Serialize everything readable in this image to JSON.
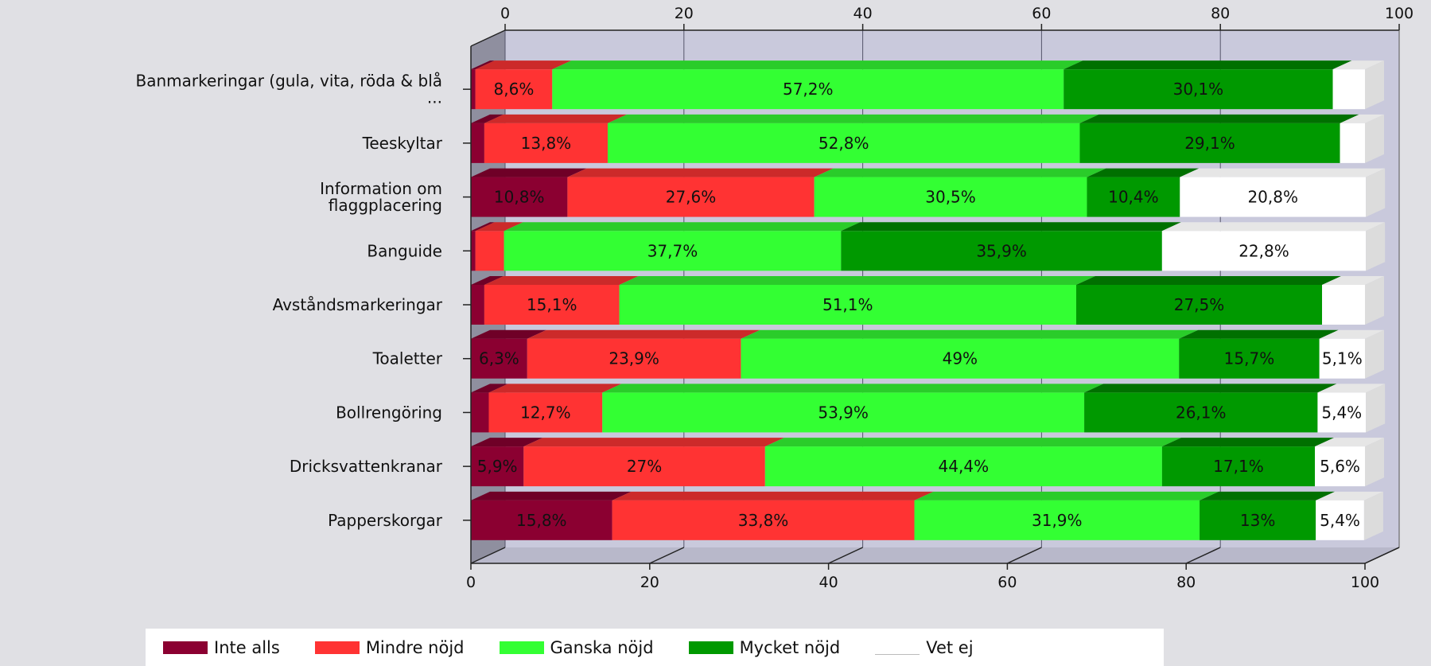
{
  "chart_data": {
    "type": "bar",
    "orientation": "horizontal",
    "stacked": true,
    "categories": [
      "Banmarkeringar (gula, vita, röda & blå ...",
      "Teeskyltar",
      "Information om flaggplacering",
      "Banguide",
      "Avståndsmarkeringar",
      "Toaletter",
      "Bollrengöring",
      "Dricksvattenkranar",
      "Papperskorgar"
    ],
    "category_lines": [
      [
        "Banmarkeringar (gula, vita, röda & blå",
        "..."
      ],
      [
        "Teeskyltar"
      ],
      [
        "Information om",
        "flaggplacering"
      ],
      [
        "Banguide"
      ],
      [
        "Avståndsmarkeringar"
      ],
      [
        "Toaletter"
      ],
      [
        "Bollrengöring"
      ],
      [
        "Dricksvattenkranar"
      ],
      [
        "Papperskorgar"
      ]
    ],
    "series": [
      {
        "name": "Inte alls",
        "color": "#8b0031",
        "side": "#a0203d",
        "top": "#6f0027",
        "values": [
          0.5,
          1.5,
          10.8,
          0.5,
          1.5,
          6.3,
          2.0,
          5.9,
          15.8
        ],
        "labels": [
          "",
          "",
          "10,8%",
          "",
          "",
          "6,3%",
          "",
          "5,9%",
          "15,8%"
        ]
      },
      {
        "name": "Mindre nöjd",
        "color": "#ff3333",
        "side": "#e03030",
        "top": "#cc2a2a",
        "values": [
          8.6,
          13.8,
          27.6,
          3.2,
          15.1,
          23.9,
          12.7,
          27.0,
          33.8
        ],
        "labels": [
          "8,6%",
          "13,8%",
          "27,6%",
          "",
          "15,1%",
          "23,9%",
          "12,7%",
          "27%",
          "33,8%"
        ]
      },
      {
        "name": "Ganska nöjd",
        "color": "#33ff33",
        "side": "#22dd22",
        "top": "#2acc2a",
        "values": [
          57.2,
          52.8,
          30.5,
          37.7,
          51.1,
          49.0,
          53.9,
          44.4,
          31.9
        ],
        "labels": [
          "57,2%",
          "52,8%",
          "30,5%",
          "37,7%",
          "51,1%",
          "49%",
          "53,9%",
          "44,4%",
          "31,9%"
        ]
      },
      {
        "name": "Mycket nöjd",
        "color": "#009900",
        "side": "#007a00",
        "top": "#007000",
        "values": [
          30.1,
          29.1,
          10.4,
          35.9,
          27.5,
          15.7,
          26.1,
          17.1,
          13.0
        ],
        "labels": [
          "30,1%",
          "29,1%",
          "10,4%",
          "35,9%",
          "27,5%",
          "15,7%",
          "26,1%",
          "17,1%",
          "13%"
        ]
      },
      {
        "name": "Vet ej",
        "color": "#ffffff",
        "side": "#dcdcdc",
        "top": "#e6e6e6",
        "values": [
          3.6,
          2.8,
          20.8,
          22.8,
          4.8,
          5.1,
          5.4,
          5.6,
          5.4
        ],
        "labels": [
          "",
          "",
          "20,8%",
          "22,8%",
          "",
          "5,1%",
          "5,4%",
          "5,6%",
          "5,4%"
        ]
      }
    ],
    "xlim": [
      0,
      100
    ],
    "xticks": [
      "0",
      "20",
      "40",
      "60",
      "80",
      "100"
    ],
    "xtick_values": [
      0,
      20,
      40,
      60,
      80,
      100
    ],
    "grid": true,
    "legend_position": "bottom",
    "title": "",
    "xlabel": "",
    "ylabel": ""
  },
  "colors": {
    "plot_background": "#c9c9dc",
    "wall_side": "#8f8f9f",
    "floor": "#b8b8ca",
    "page_background": "#e0e0e4"
  }
}
